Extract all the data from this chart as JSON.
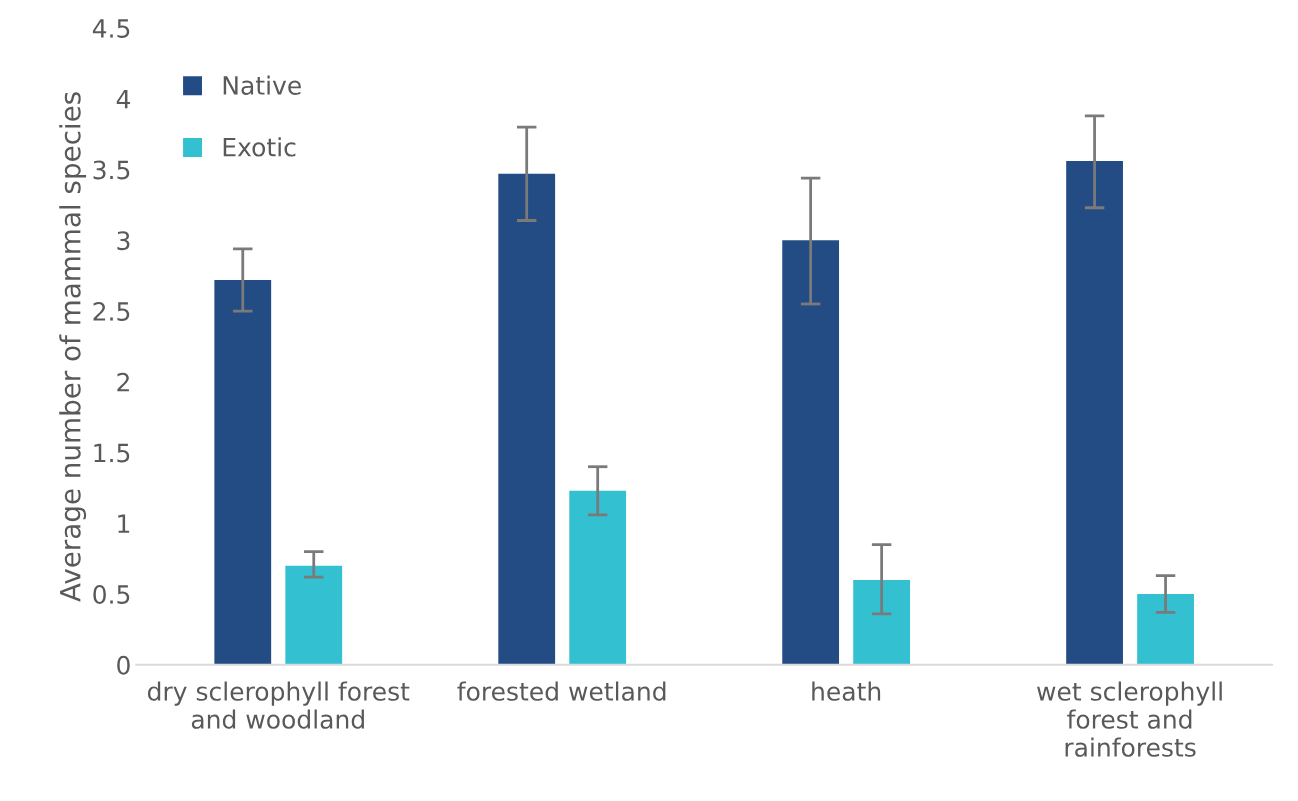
{
  "chart_data": {
    "type": "bar",
    "ylabel": "Average number of mammal species",
    "categories": [
      "dry sclerophyll forest\nand woodland",
      "forested wetland",
      "heath",
      "wet sclerophyll\nforest and\nrainforests"
    ],
    "series": [
      {
        "name": "Native",
        "color": "#234c84",
        "values": [
          2.72,
          3.47,
          3.0,
          3.56
        ],
        "errors": [
          [
            2.5,
            2.94
          ],
          [
            3.14,
            3.8
          ],
          [
            2.55,
            3.44
          ],
          [
            3.23,
            3.88
          ]
        ]
      },
      {
        "name": "Exotic",
        "color": "#33c0d0",
        "values": [
          0.7,
          1.23,
          0.6,
          0.5
        ],
        "errors": [
          [
            0.62,
            0.8
          ],
          [
            1.06,
            1.4
          ],
          [
            0.36,
            0.85
          ],
          [
            0.37,
            0.63
          ]
        ]
      }
    ],
    "ylim": [
      0,
      4.5
    ],
    "yticks": [
      0,
      0.5,
      1,
      1.5,
      2,
      2.5,
      3,
      3.5,
      4,
      4.5
    ],
    "grid": false,
    "legend": "top left"
  }
}
